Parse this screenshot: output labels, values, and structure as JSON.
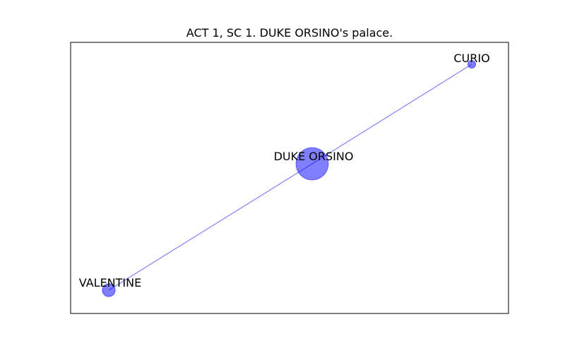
{
  "title": "ACT 1, SC 1. DUKE ORSINO's palace.",
  "colors": {
    "node": "#0000ff",
    "edge": "#0000ff",
    "frame": "#000000",
    "label": "#000000"
  },
  "graph": {
    "nodes": [
      {
        "id": "curio",
        "label": "CURIO",
        "weight": 1
      },
      {
        "id": "duke-orsino",
        "label": "DUKE ORSINO",
        "weight": 20
      },
      {
        "id": "valentine",
        "label": "VALENTINE",
        "weight": 3
      }
    ],
    "edges": [
      {
        "source": "duke-orsino",
        "target": "curio"
      },
      {
        "source": "duke-orsino",
        "target": "valentine"
      }
    ]
  }
}
